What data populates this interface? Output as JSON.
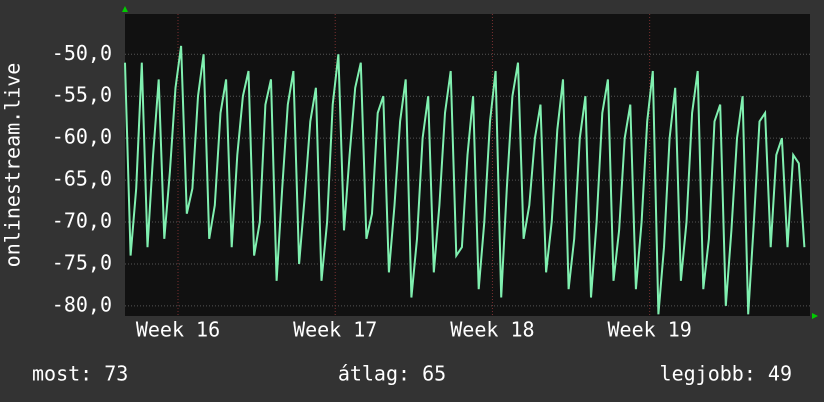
{
  "chart_data": {
    "type": "line",
    "y_label": "onlinestream.live",
    "xlim": [
      0,
      30.5
    ],
    "xticks": [
      {
        "value": 2.36,
        "label": "Week 16"
      },
      {
        "value": 9.36,
        "label": "Week 17"
      },
      {
        "value": 16.36,
        "label": "Week 18"
      },
      {
        "value": 23.36,
        "label": "Week 19"
      }
    ],
    "ylim": [
      -81.2,
      -45.2
    ],
    "yticks": [
      {
        "value": -50,
        "label": "-50,0"
      },
      {
        "value": -55,
        "label": "-55,0"
      },
      {
        "value": -60,
        "label": "-60,0"
      },
      {
        "value": -65,
        "label": "-65,0"
      },
      {
        "value": -70,
        "label": "-70,0"
      },
      {
        "value": -75,
        "label": "-75,0"
      },
      {
        "value": -80,
        "label": "-80,0"
      }
    ],
    "grid": true,
    "x": [
      0,
      0.25,
      0.5,
      0.75,
      1,
      1.25,
      1.5,
      1.75,
      2,
      2.25,
      2.5,
      2.75,
      3,
      3.25,
      3.5,
      3.75,
      4,
      4.25,
      4.5,
      4.75,
      5,
      5.25,
      5.5,
      5.75,
      6,
      6.25,
      6.5,
      6.75,
      7,
      7.25,
      7.5,
      7.75,
      8,
      8.25,
      8.5,
      8.75,
      9,
      9.25,
      9.5,
      9.75,
      10,
      10.25,
      10.5,
      10.75,
      11,
      11.25,
      11.5,
      11.75,
      12,
      12.25,
      12.5,
      12.75,
      13,
      13.25,
      13.5,
      13.75,
      14,
      14.25,
      14.5,
      14.75,
      15,
      15.25,
      15.5,
      15.75,
      16,
      16.25,
      16.5,
      16.75,
      17,
      17.25,
      17.5,
      17.75,
      18,
      18.25,
      18.5,
      18.75,
      19,
      19.25,
      19.5,
      19.75,
      20,
      20.25,
      20.5,
      20.75,
      21,
      21.25,
      21.5,
      21.75,
      22,
      22.25,
      22.5,
      22.75,
      23,
      23.25,
      23.5,
      23.75,
      24,
      24.25,
      24.5,
      24.75,
      25,
      25.25,
      25.5,
      25.75,
      26,
      26.25,
      26.5,
      26.75,
      27,
      27.25,
      27.5,
      27.75,
      28,
      28.25,
      28.5,
      28.75,
      29,
      29.25,
      29.5,
      29.75,
      30,
      30.25
    ],
    "series": [
      {
        "name": "onlinestream.live",
        "color": "#80f0b0",
        "values": [
          -51,
          -74,
          -66,
          -51,
          -73,
          -62,
          -53,
          -72,
          -64,
          -54,
          -49,
          -69,
          -66,
          -55,
          -50,
          -72,
          -68,
          -57,
          -53,
          -73,
          -62,
          -55,
          -52,
          -74,
          -70,
          -56,
          -53,
          -77,
          -66,
          -56,
          -52,
          -75,
          -67,
          -58,
          -54,
          -77,
          -70,
          -56,
          -50,
          -71,
          -62,
          -54,
          -51,
          -72,
          -69,
          -57,
          -55,
          -76,
          -68,
          -58,
          -53,
          -79,
          -72,
          -60,
          -55,
          -76,
          -68,
          -57,
          -52,
          -74,
          -73,
          -62,
          -55,
          -78,
          -70,
          -58,
          -52,
          -79,
          -66,
          -55,
          -51,
          -72,
          -68,
          -60,
          -56,
          -76,
          -70,
          -59,
          -53,
          -78,
          -72,
          -60,
          -55,
          -79,
          -70,
          -57,
          -53,
          -77,
          -71,
          -60,
          -56,
          -78,
          -70,
          -58,
          -52,
          -81,
          -73,
          -60,
          -54,
          -77,
          -70,
          -57,
          -52,
          -78,
          -72,
          -58,
          -56,
          -80,
          -71,
          -60,
          -55,
          -81,
          -70,
          -58,
          -57,
          -73,
          -62,
          -60,
          -73,
          -62,
          -63,
          -73
        ]
      }
    ],
    "footer": [
      "most: 73",
      "átlag: 65",
      "legjobb: 49"
    ]
  }
}
